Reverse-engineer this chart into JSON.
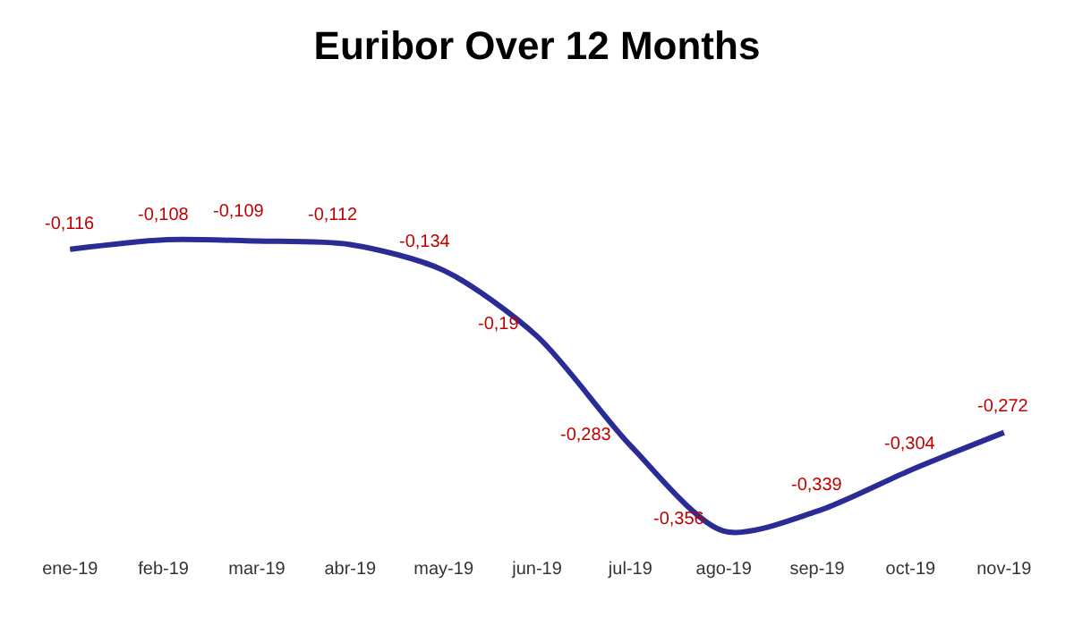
{
  "chart_data": {
    "type": "line",
    "title": "Euribor Over 12 Months",
    "categories": [
      "ene-19",
      "feb-19",
      "mar-19",
      "abr-19",
      "may-19",
      "jun-19",
      "jul-19",
      "ago-19",
      "sep-19",
      "oct-19",
      "nov-19"
    ],
    "series": [
      {
        "color": "#2b2b96",
        "values": [
          -0.116,
          -0.108,
          -0.109,
          -0.112,
          -0.134,
          -0.19,
          -0.283,
          -0.356,
          -0.339,
          -0.304,
          -0.272
        ],
        "value_labels": [
          "-0,116",
          "-0,108",
          "-0,109",
          "-0,112",
          "-0,134",
          "-0,19",
          "-0,283",
          "-0,356",
          "-0,339",
          "-0,304",
          "-0,272"
        ]
      }
    ],
    "marker": "none",
    "line_style": "solid"
  }
}
